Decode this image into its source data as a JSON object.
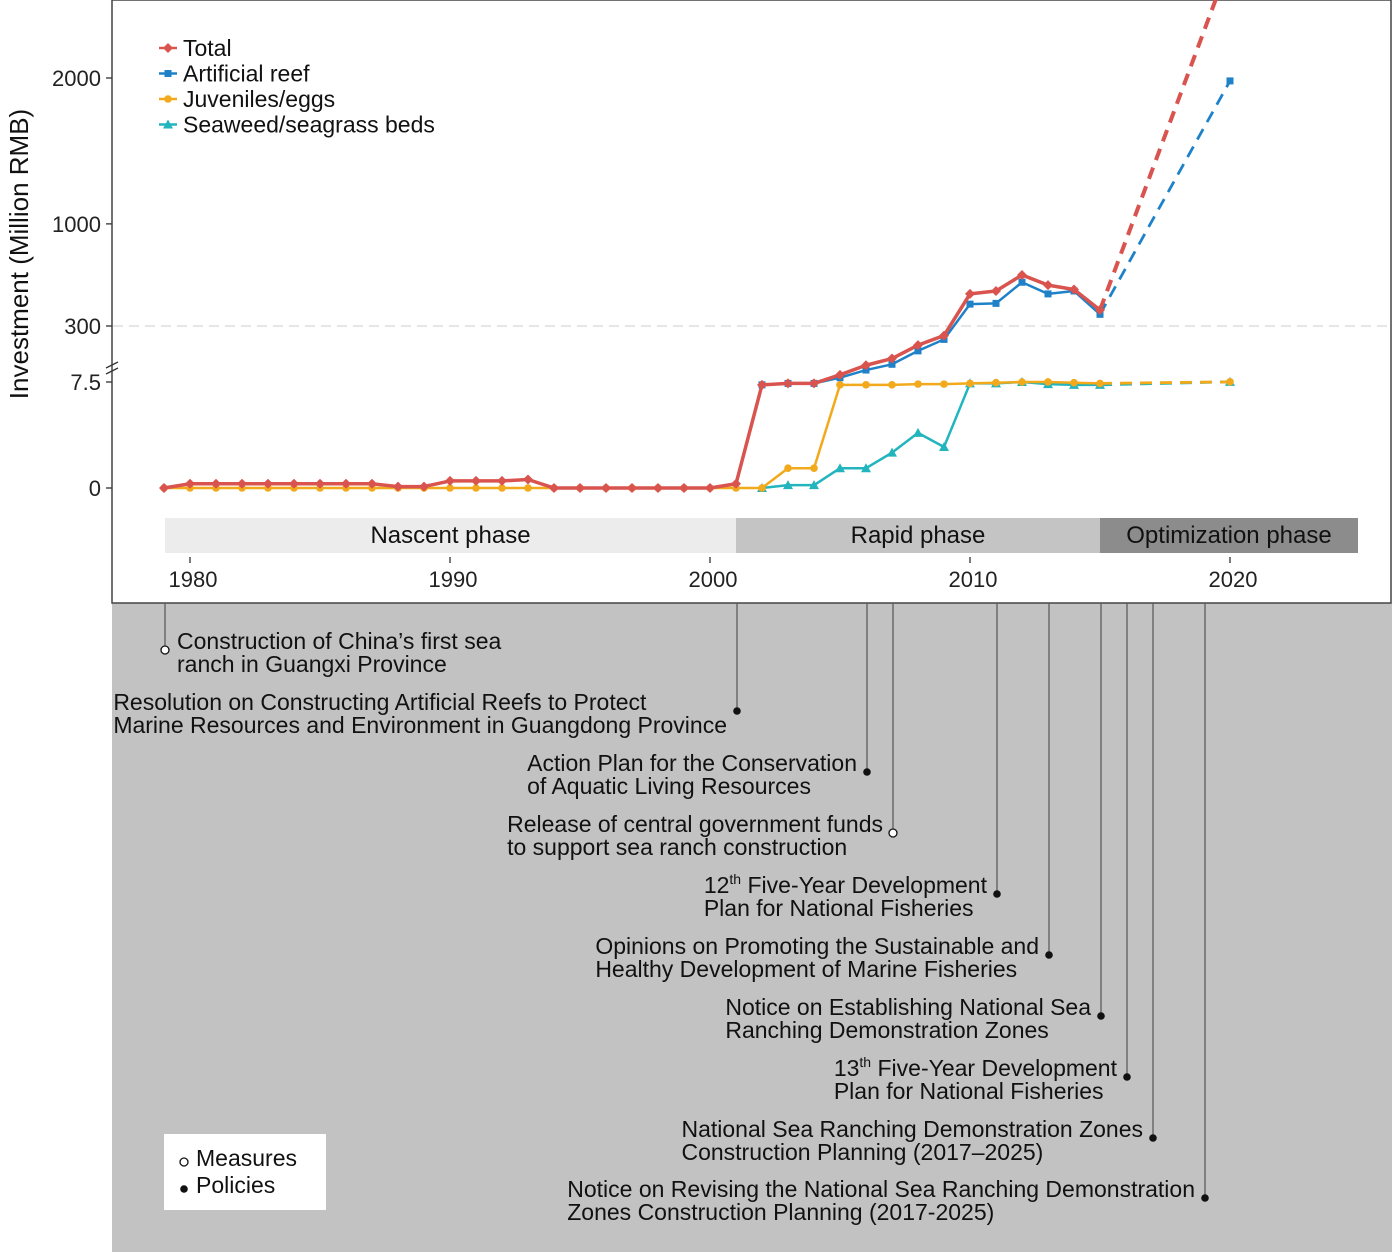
{
  "chart_data": {
    "type": "line",
    "ylabel": "Investment (Million RMB)",
    "y_ticks": [
      "0",
      "7.5",
      "300",
      "1000",
      "2000"
    ],
    "x_ticks": [
      "1980",
      "1990",
      "2000",
      "2010",
      "2020"
    ],
    "axis_break": "between 7.5 and 300",
    "grid": false,
    "legend_position": "top-left",
    "series": [
      {
        "name": "Total",
        "color": "#d9534f",
        "marker": "diamond",
        "x": [
          1979,
          1980,
          1981,
          1982,
          1983,
          1984,
          1985,
          1986,
          1987,
          1988,
          1989,
          1990,
          1991,
          1992,
          1993,
          1994,
          1995,
          1996,
          1997,
          1998,
          1999,
          2000,
          2001,
          2002,
          2003,
          2004,
          2005,
          2006,
          2007,
          2008,
          2009,
          2010,
          2011,
          2012,
          2013,
          2014,
          2015
        ],
        "y": [
          0,
          0.3,
          0.3,
          0.3,
          0.3,
          0.3,
          0.3,
          0.3,
          0.3,
          0.1,
          0.1,
          0.5,
          0.5,
          0.5,
          0.6,
          0,
          0,
          0,
          0,
          0,
          0,
          0,
          0.3,
          7.3,
          7.4,
          7.4,
          45,
          95,
          130,
          200,
          250,
          520,
          540,
          650,
          580,
          550,
          410
        ],
        "projection": {
          "x": [
            2015,
            2020
          ],
          "y": [
            410,
            2800
          ]
        }
      },
      {
        "name": "Artificial reef",
        "color": "#1f82c9",
        "marker": "square",
        "x": [
          2002,
          2003,
          2004,
          2005,
          2006,
          2007,
          2008,
          2009,
          2010,
          2011,
          2012,
          2013,
          2014,
          2015
        ],
        "y": [
          7.3,
          7.4,
          7.4,
          30,
          70,
          100,
          170,
          230,
          450,
          455,
          600,
          520,
          540,
          380
        ],
        "projection": {
          "x": [
            2015,
            2020
          ],
          "y": [
            380,
            1980
          ]
        }
      },
      {
        "name": "Juveniles/eggs",
        "color": "#f2a91c",
        "marker": "circle",
        "x": [
          1979,
          1980,
          1981,
          1982,
          1983,
          1984,
          1985,
          1986,
          1987,
          1988,
          1989,
          1990,
          1991,
          1992,
          1993,
          1994,
          1995,
          1996,
          1997,
          1998,
          1999,
          2000,
          2001,
          2002,
          2003,
          2004,
          2005,
          2006,
          2007,
          2008,
          2009,
          2010,
          2011,
          2012,
          2013,
          2014,
          2015
        ],
        "y": [
          0,
          0,
          0,
          0,
          0,
          0,
          0,
          0,
          0,
          0,
          0,
          0,
          0,
          0,
          0,
          0,
          0,
          0,
          0,
          0,
          0,
          0,
          0,
          0,
          1.4,
          1.4,
          7.3,
          7.3,
          7.3,
          7.35,
          7.35,
          7.4,
          7.45,
          7.5,
          7.6,
          7.45,
          7.4
        ],
        "projection": {
          "x": [
            2015,
            2020
          ],
          "y": [
            7.4,
            8.3
          ]
        }
      },
      {
        "name": "Seaweed/seagrass beds",
        "color": "#22b5bd",
        "marker": "triangle",
        "x": [
          2002,
          2003,
          2004,
          2005,
          2006,
          2007,
          2008,
          2009,
          2010,
          2011,
          2012,
          2013,
          2014,
          2015
        ],
        "y": [
          0,
          0.2,
          0.2,
          1.4,
          1.4,
          2.5,
          3.9,
          2.9,
          7.4,
          7.4,
          7.5,
          7.35,
          7.3,
          7.3
        ],
        "projection": {
          "x": [
            2015,
            2020
          ],
          "y": [
            7.3,
            8.4
          ]
        }
      }
    ],
    "phases": [
      {
        "label": "Nascent phase",
        "start": 1979,
        "end": 2001,
        "color": "#ececec"
      },
      {
        "label": "Rapid phase",
        "start": 2001,
        "end": 2015,
        "color": "#c4c4c4"
      },
      {
        "label": "Optimization phase",
        "start": 2015,
        "end": 2025,
        "color": "#8c8c8c"
      }
    ]
  },
  "events": [
    {
      "year": 1979,
      "kind": "Measures",
      "lines": [
        "Construction of China’s first sea",
        "ranch in Guangxi Province"
      ]
    },
    {
      "year": 2001,
      "kind": "Policies",
      "lines": [
        "Resolution on Constructing Artificial Reefs to Protect",
        "Marine Resources and Environment in Guangdong Province"
      ]
    },
    {
      "year": 2006,
      "kind": "Policies",
      "lines": [
        "Action Plan for the Conservation",
        "of Aquatic Living Resources"
      ]
    },
    {
      "year": 2007,
      "kind": "Measures",
      "lines": [
        "Release of central government funds",
        "to support sea ranch construction"
      ]
    },
    {
      "year": 2011,
      "kind": "Policies",
      "lines": [
        "12th Five-Year Development",
        "Plan for National Fisheries"
      ]
    },
    {
      "year": 2013,
      "kind": "Policies",
      "lines": [
        "Opinions on Promoting the Sustainable and",
        "Healthy Development of Marine Fisheries"
      ]
    },
    {
      "year": 2015,
      "kind": "Policies",
      "lines": [
        "Notice on Establishing National Sea",
        "Ranching Demonstration Zones"
      ]
    },
    {
      "year": 2016,
      "kind": "Policies",
      "lines": [
        "13th Five-Year Development",
        "Plan for National Fisheries"
      ]
    },
    {
      "year": 2017,
      "kind": "Policies",
      "lines": [
        "National Sea Ranching Demonstration Zones",
        "Construction Planning (2017–2025)"
      ]
    },
    {
      "year": 2019,
      "kind": "Policies",
      "lines": [
        "Notice on Revising the National Sea Ranching Demonstration",
        "Zones Construction Planning (2017-2025)"
      ]
    }
  ],
  "event_legend": [
    "Measures",
    "Policies"
  ]
}
